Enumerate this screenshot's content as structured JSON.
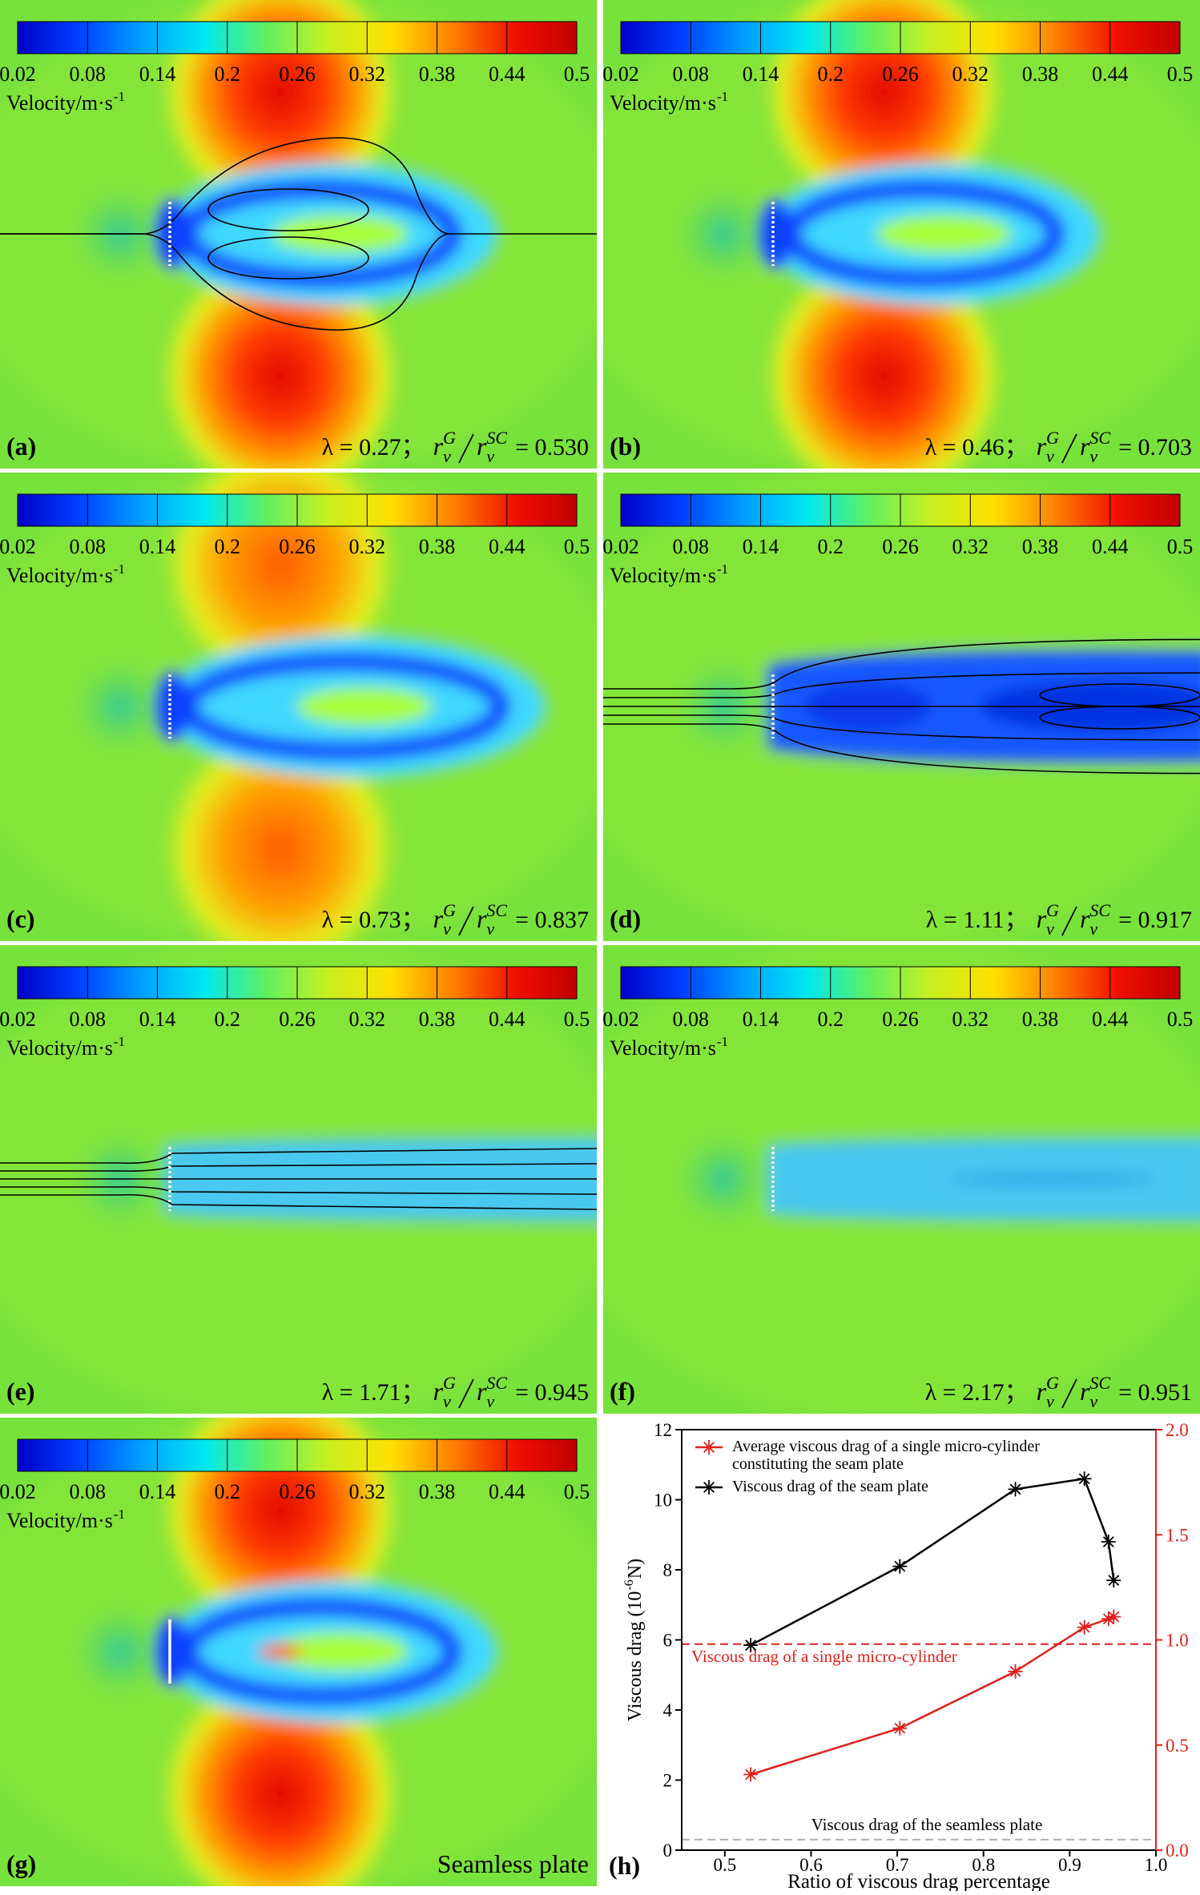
{
  "colorbar": {
    "label": "Velocity/m·s",
    "label_sup": "-1",
    "ticks": [
      0.02,
      0.08,
      0.14,
      0.2,
      0.26,
      0.32,
      0.38,
      0.44,
      0.5
    ],
    "colors": [
      "#0000c8",
      "#0040ff",
      "#00a0ff",
      "#00e8f0",
      "#60f060",
      "#c8f020",
      "#ffe000",
      "#ff8000",
      "#f01000",
      "#c00000"
    ]
  },
  "ratio_symbol": {
    "base": "r",
    "sub": "v",
    "numerator": "G",
    "denominator": "SC"
  },
  "chart_data": [
    {
      "type": "contour",
      "panel_label": "(a)",
      "lambda_text": "λ = 0.27；",
      "ratio_text": "= 0.530"
    },
    {
      "type": "contour",
      "panel_label": "(b)",
      "lambda_text": "λ = 0.46；",
      "ratio_text": "= 0.703"
    },
    {
      "type": "contour",
      "panel_label": "(c)",
      "lambda_text": "λ = 0.73；",
      "ratio_text": "= 0.837"
    },
    {
      "type": "contour",
      "panel_label": "(d)",
      "lambda_text": "λ = 1.11；",
      "ratio_text": "= 0.917"
    },
    {
      "type": "contour",
      "panel_label": "(e)",
      "lambda_text": "λ = 1.71；",
      "ratio_text": "= 0.945"
    },
    {
      "type": "contour",
      "panel_label": "(f)",
      "lambda_text": "λ = 2.17；",
      "ratio_text": "= 0.951"
    },
    {
      "type": "contour",
      "panel_label": "(g)",
      "caption": "Seamless plate"
    },
    {
      "type": "line",
      "panel_label": "(h)",
      "x": [
        0.53,
        0.703,
        0.837,
        0.917,
        0.945,
        0.951
      ],
      "series": [
        {
          "name": "Average viscous drag of a single micro-cylinder constituting the seam plate",
          "color": "#e0201b",
          "axis": "y2",
          "values": [
            0.36,
            0.58,
            0.85,
            1.06,
            1.1,
            1.11
          ]
        },
        {
          "name": "Viscous drag of the seam plate",
          "color": "#000000",
          "values": [
            5.85,
            8.1,
            10.3,
            10.6,
            8.8,
            7.7
          ]
        }
      ],
      "reference_lines": [
        {
          "label": "Viscous drag of a single micro-cylinder",
          "value": 0.98,
          "axis": "y2",
          "color": "#e0201b"
        },
        {
          "label": "Viscous drag of the seamless plate",
          "value": 0.3,
          "color": "#b0b0b0"
        }
      ],
      "xlabel": "Ratio of viscous drag percentage",
      "ylabel": "Viscous drag (10",
      "ylabel_sup": "-6",
      "ylabel_end": " N)",
      "xlim": [
        0.45,
        1.0
      ],
      "xticks": [
        0.5,
        0.6,
        0.7,
        0.8,
        0.9,
        {
          "value": 1,
          "label": "1.0"
        }
      ],
      "ylim": [
        0,
        12
      ],
      "yticks": [
        0,
        2,
        4,
        6,
        8,
        10,
        12
      ],
      "y2lim": [
        0,
        2
      ],
      "y2ticks": [
        {
          "value": 0,
          "label": "0.0"
        },
        0.5,
        {
          "value": 1,
          "label": "1.0"
        },
        1.5,
        {
          "value": 2,
          "label": "2.0"
        }
      ],
      "y2color": "#e0201b",
      "legend": "upper left"
    }
  ]
}
